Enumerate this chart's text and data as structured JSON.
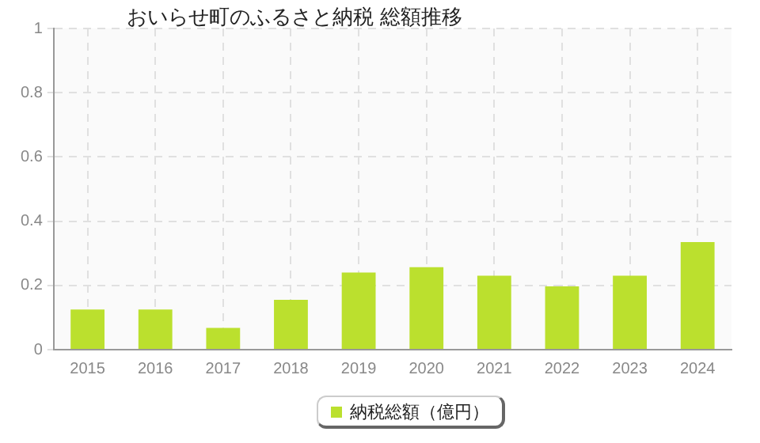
{
  "chart_data": {
    "type": "bar",
    "title": "おいらせ町のふるさと納税 総額推移",
    "categories": [
      "2015",
      "2016",
      "2017",
      "2018",
      "2019",
      "2020",
      "2021",
      "2022",
      "2023",
      "2024"
    ],
    "series": [
      {
        "name": "納税総額（億円）",
        "color": "#bbe02e",
        "values": [
          0.125,
          0.125,
          0.068,
          0.155,
          0.24,
          0.257,
          0.23,
          0.197,
          0.23,
          0.335
        ]
      }
    ],
    "ylim": [
      0,
      1
    ],
    "yticks": [
      0,
      0.2,
      0.4,
      0.6,
      0.8,
      1
    ],
    "grid": true,
    "legend": "bottom"
  }
}
